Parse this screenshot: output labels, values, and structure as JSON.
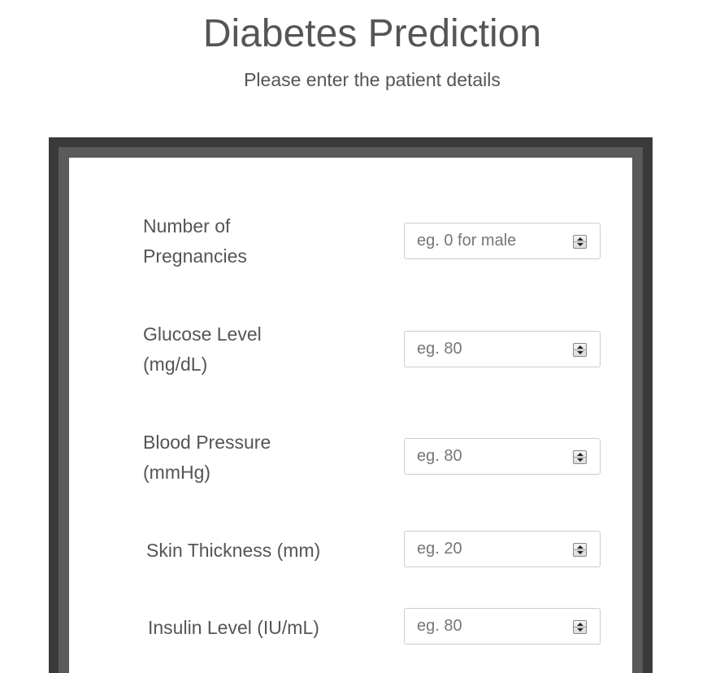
{
  "header": {
    "title": "Diabetes Prediction",
    "subtitle": "Please enter the patient details"
  },
  "form": {
    "fields": [
      {
        "label_line1": "Number of",
        "label_line2": "Pregnancies",
        "placeholder": "eg. 0 for male"
      },
      {
        "label_line1": "Glucose Level",
        "label_line2": "(mg/dL)",
        "placeholder": "eg. 80"
      },
      {
        "label_line1": "Blood Pressure",
        "label_line2": "(mmHg)",
        "placeholder": "eg. 80"
      },
      {
        "label": "Skin Thickness (mm)",
        "placeholder": "eg. 20"
      },
      {
        "label": "Insulin Level (IU/mL)",
        "placeholder": "eg. 80"
      }
    ]
  },
  "colors": {
    "frame_dark": "#3a3a3a",
    "frame_light": "#5a5a5a",
    "text": "#555555",
    "input_border": "#cccccc"
  },
  "icons": {
    "spinner": "number-spinner-icon"
  }
}
